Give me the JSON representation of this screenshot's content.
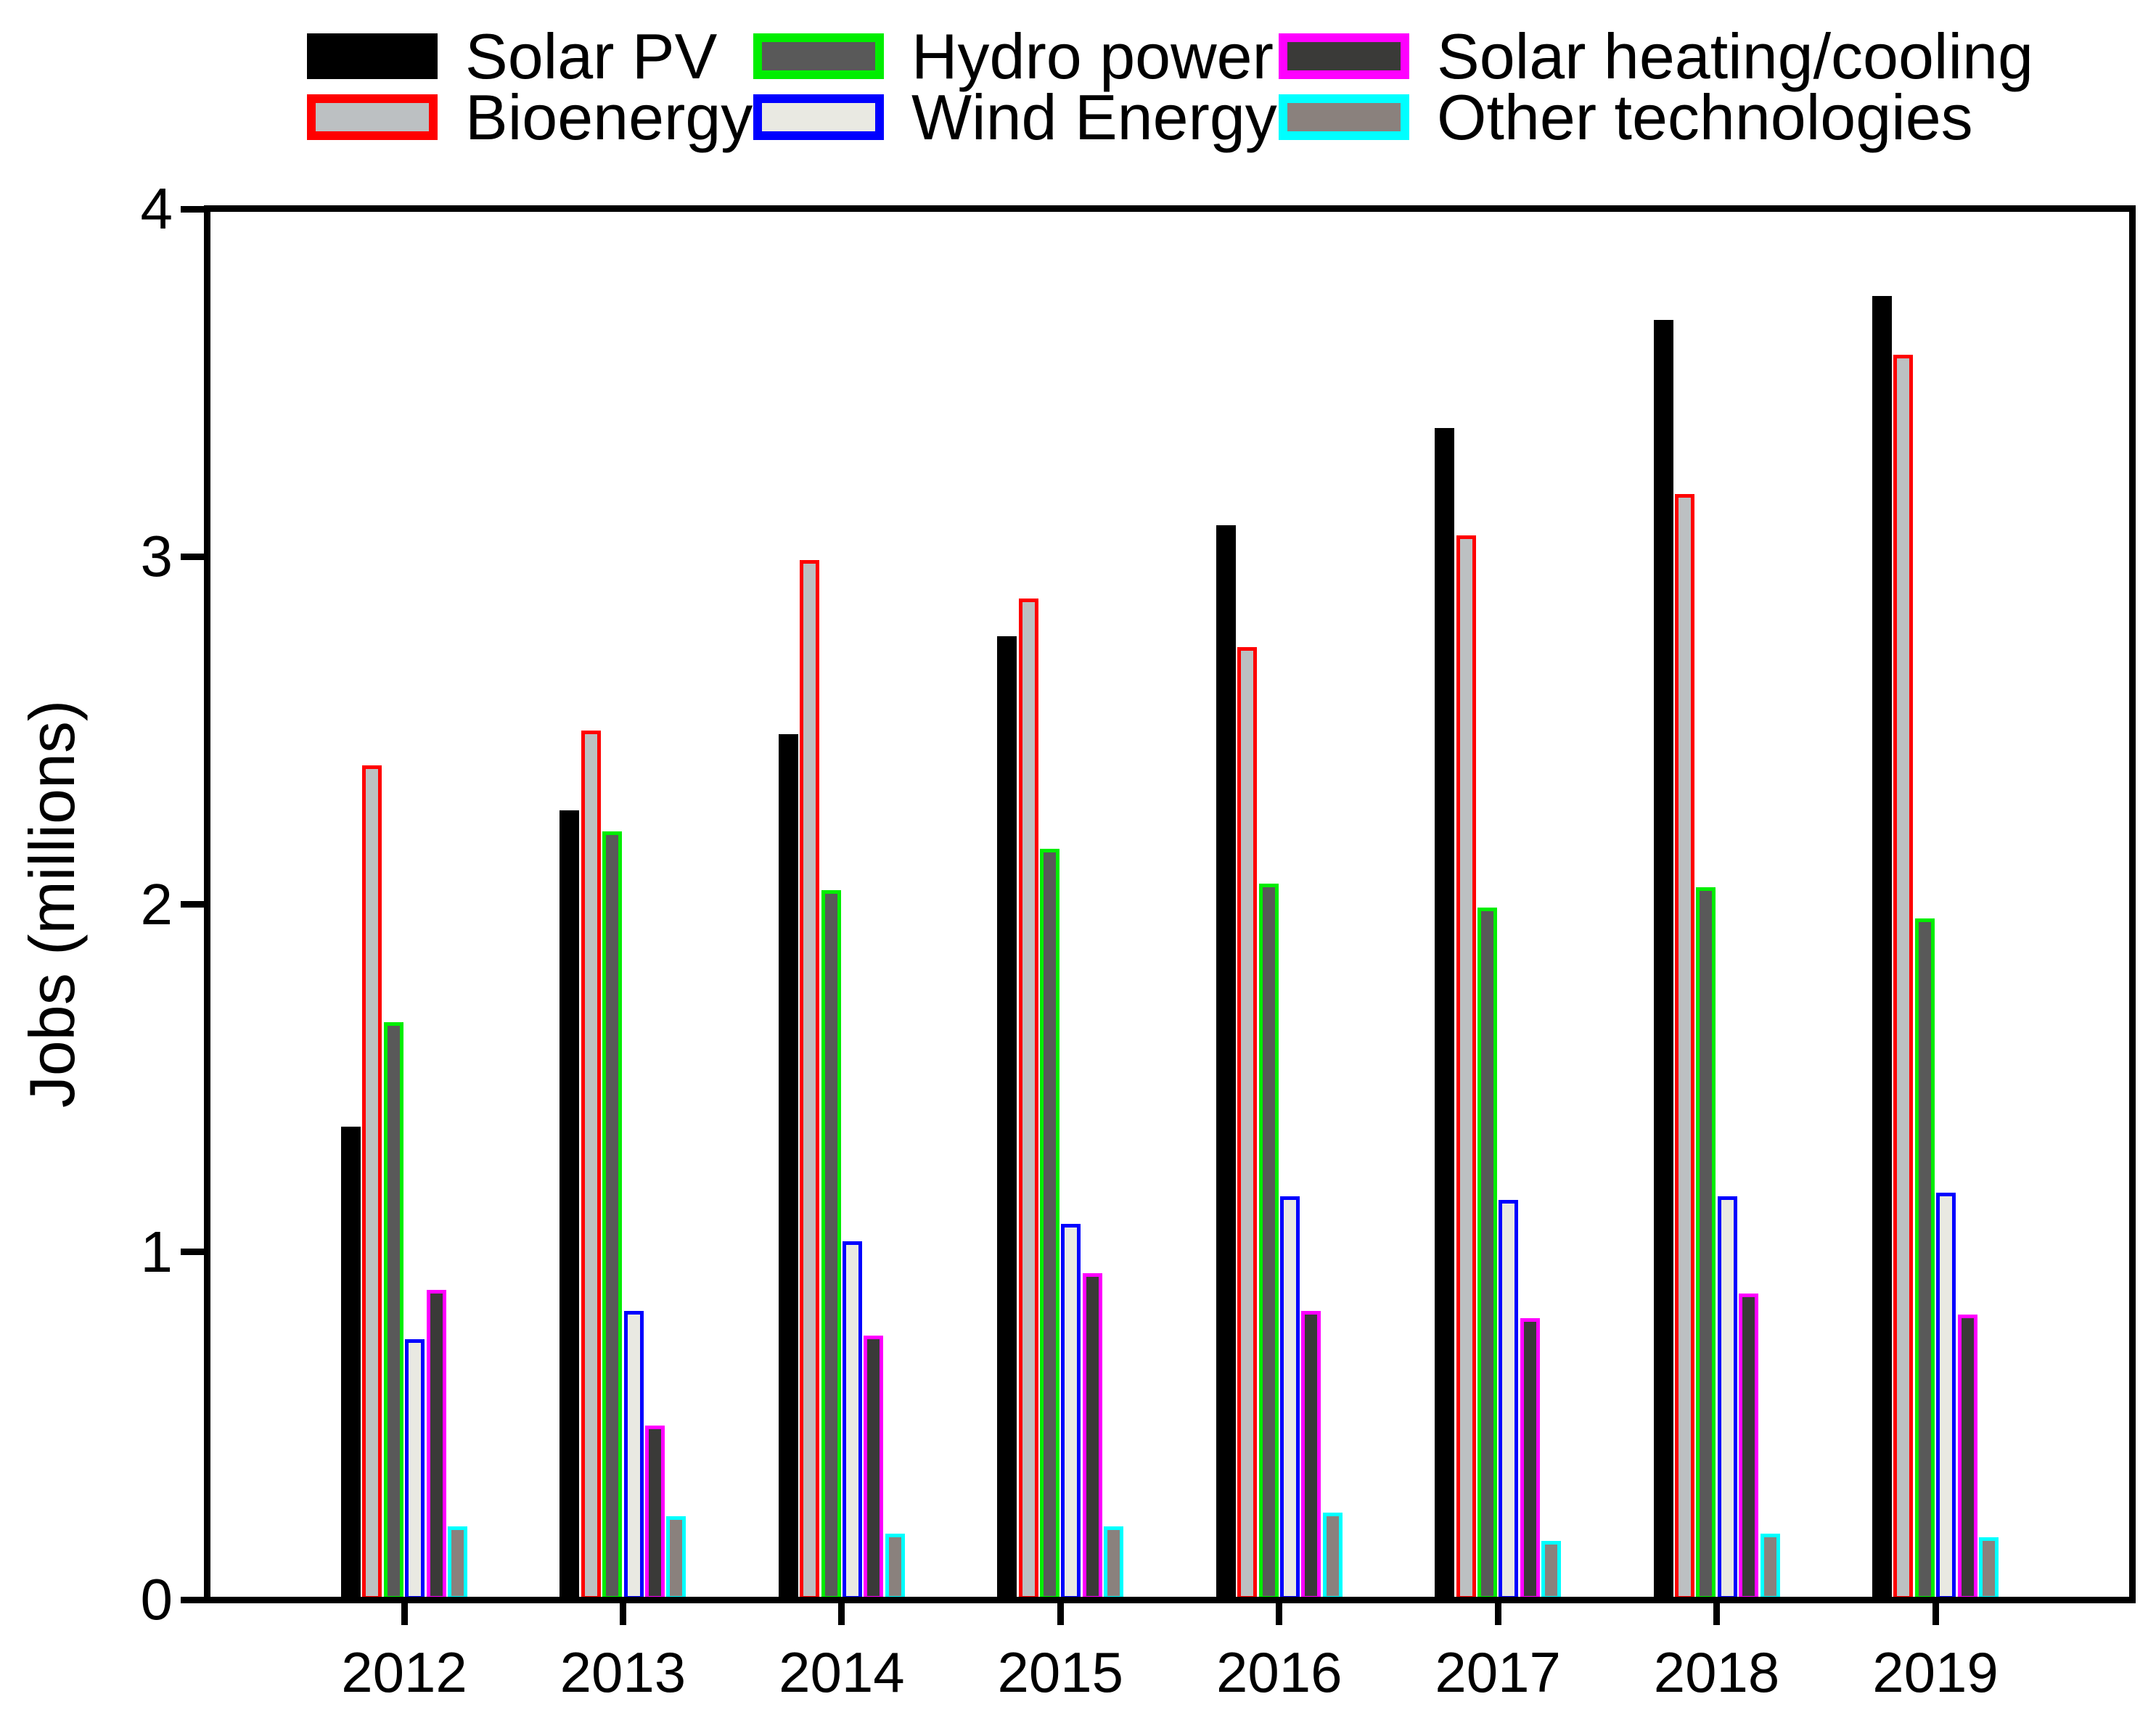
{
  "figure": {
    "background": "#ffffff",
    "text_color": "#000000",
    "axis_color": "#000000"
  },
  "chart_data": {
    "type": "bar",
    "title": "",
    "xlabel": "",
    "ylabel": "Jobs (millions)",
    "ylim": [
      0,
      4
    ],
    "yticks": [
      "0",
      "1",
      "2",
      "3",
      "4"
    ],
    "grid": false,
    "legend_position": "top",
    "plot_frame": "full-box",
    "categories": [
      "2012",
      "2013",
      "2014",
      "2015",
      "2016",
      "2017",
      "2018",
      "2019"
    ],
    "series": [
      {
        "name": "Solar PV",
        "border_color": "#000000",
        "fill_color": "#000000",
        "values": [
          1.36,
          2.27,
          2.49,
          2.77,
          3.09,
          3.37,
          3.68,
          3.75
        ]
      },
      {
        "name": "Bioenergy",
        "border_color": "#ff0000",
        "fill_color": "#bcc0c2",
        "values": [
          2.4,
          2.5,
          2.99,
          2.88,
          2.74,
          3.06,
          3.18,
          3.58
        ]
      },
      {
        "name": "Hydro power",
        "border_color": "#00ee00",
        "fill_color": "#595959",
        "values": [
          1.66,
          2.21,
          2.04,
          2.16,
          2.06,
          1.99,
          2.05,
          1.96
        ]
      },
      {
        "name": "Wind Energy",
        "border_color": "#0000ff",
        "fill_color": "#e9e9e2",
        "values": [
          0.75,
          0.83,
          1.03,
          1.08,
          1.16,
          1.15,
          1.16,
          1.17
        ]
      },
      {
        "name": "Solar heating/cooling",
        "border_color": "#ff00ff",
        "fill_color": "#3a3a38",
        "values": [
          0.89,
          0.5,
          0.76,
          0.94,
          0.83,
          0.81,
          0.88,
          0.82
        ]
      },
      {
        "name": "Other technologies",
        "border_color": "#00ffff",
        "fill_color": "#8a817d",
        "values": [
          0.21,
          0.24,
          0.19,
          0.21,
          0.25,
          0.17,
          0.19,
          0.18
        ]
      }
    ]
  }
}
